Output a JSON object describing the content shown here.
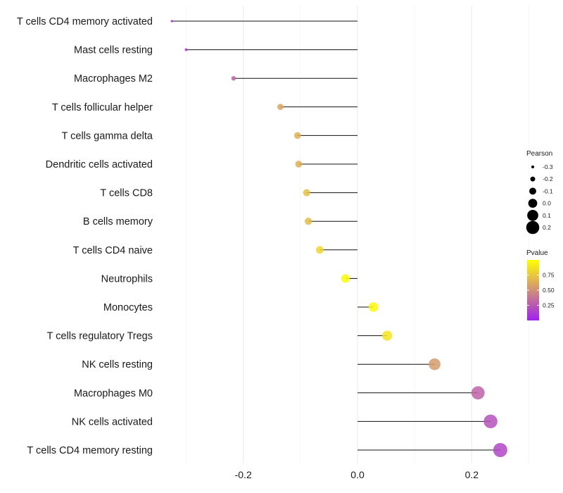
{
  "chart_data": {
    "type": "lollipop",
    "title": "",
    "xlabel": "",
    "ylabel": "",
    "xlim": [
      -0.345,
      0.345
    ],
    "x_ticks": [
      -0.2,
      0.0,
      0.2
    ],
    "x_tick_labels": [
      "-0.2",
      "0.0",
      "0.2"
    ],
    "categories": [
      "T cells CD4 memory activated",
      "Mast cells resting",
      "Macrophages M2",
      "T cells follicular helper",
      "T cells gamma delta",
      "Dendritic cells activated",
      "T cells CD8",
      "B cells memory",
      "T cells CD4 naive",
      "Neutrophils",
      "Monocytes",
      "T cells regulatory  Tregs ",
      "NK cells resting",
      "Macrophages M0",
      "NK cells activated",
      "T cells CD4 memory resting"
    ],
    "pearson": [
      -0.325,
      -0.3,
      -0.217,
      -0.135,
      -0.105,
      -0.103,
      -0.089,
      -0.086,
      -0.066,
      -0.021,
      0.028,
      0.052,
      0.135,
      0.211,
      0.233,
      0.25
    ],
    "pvalue": [
      0.05,
      0.12,
      0.3,
      0.6,
      0.65,
      0.64,
      0.72,
      0.7,
      0.82,
      0.98,
      0.97,
      0.88,
      0.55,
      0.3,
      0.22,
      0.18
    ],
    "size_legend": {
      "title": "Pearson",
      "labels": [
        "-0.3",
        "-0.2",
        "-0.1",
        "0.0",
        "0.1",
        "0.2"
      ],
      "values": [
        -0.3,
        -0.2,
        -0.1,
        0.0,
        0.1,
        0.2
      ]
    },
    "color_legend": {
      "title": "Pvalue",
      "labels": [
        "0.75",
        "0.50",
        "0.25"
      ],
      "values": [
        0.75,
        0.5,
        0.25
      ],
      "low_color": "#a020f0",
      "high_color": "#ffff00"
    }
  }
}
